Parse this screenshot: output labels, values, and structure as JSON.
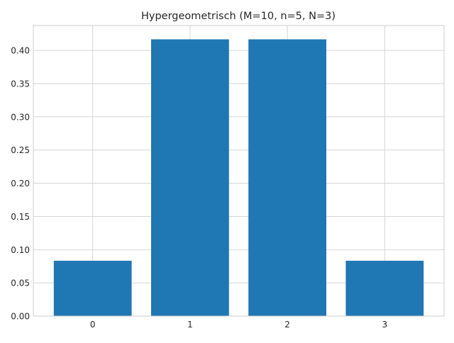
{
  "chart_data": {
    "type": "bar",
    "title": "Hypergeometrisch (M=10, n=5, N=3)",
    "xlabel": "",
    "ylabel": "",
    "categories": [
      "0",
      "1",
      "2",
      "3"
    ],
    "values": [
      0.0833,
      0.4167,
      0.4167,
      0.0833
    ],
    "ylim": [
      0,
      0.4375
    ],
    "yticks": [
      "0.00",
      "0.05",
      "0.10",
      "0.15",
      "0.20",
      "0.25",
      "0.30",
      "0.35",
      "0.40"
    ],
    "grid": true,
    "legend": "none",
    "bar_color": "#1f77b4"
  }
}
